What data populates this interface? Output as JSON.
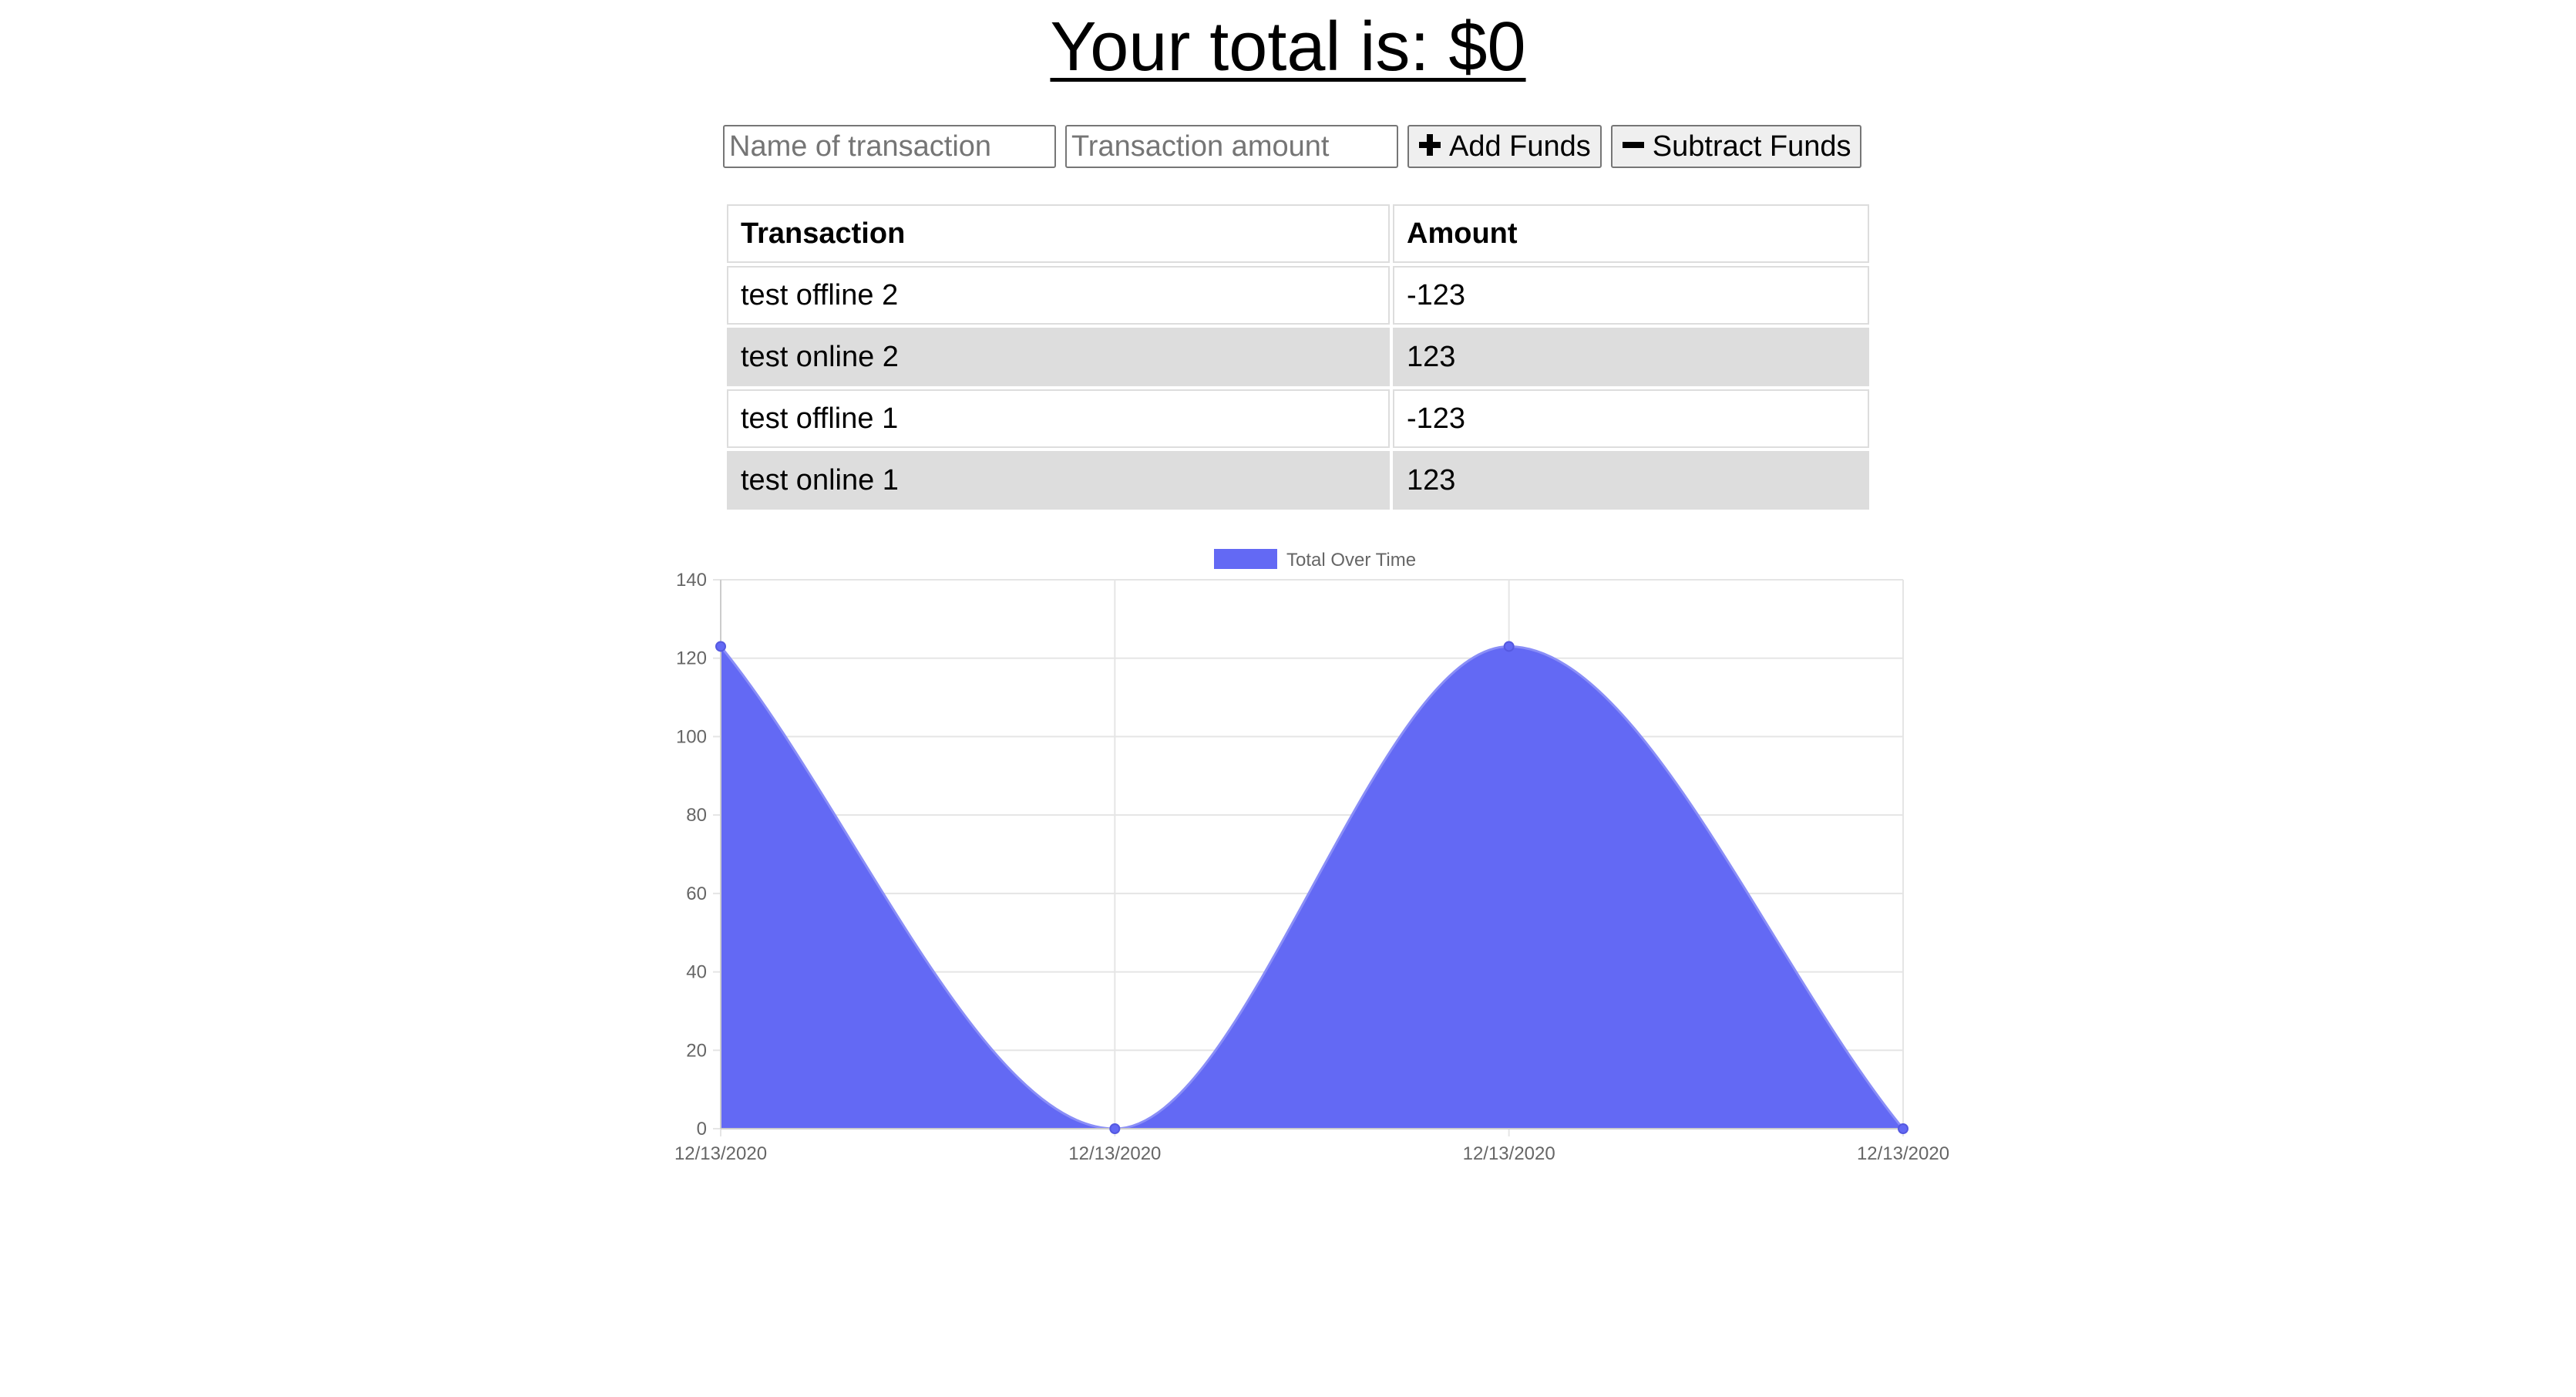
{
  "header": {
    "total_text": "Your total is: $0"
  },
  "form": {
    "name_placeholder": "Name of transaction",
    "amount_placeholder": "Transaction amount",
    "add_label": "Add Funds",
    "subtract_label": "Subtract Funds",
    "add_icon": "plus-icon",
    "subtract_icon": "minus-icon"
  },
  "table": {
    "headers": [
      "Transaction",
      "Amount"
    ],
    "rows": [
      {
        "name": "test offline 2",
        "amount": "-123"
      },
      {
        "name": "test online 2",
        "amount": "123"
      },
      {
        "name": "test offline 1",
        "amount": "-123"
      },
      {
        "name": "test online 1",
        "amount": "123"
      }
    ],
    "alt_row_color": "#dddddd"
  },
  "chart_data": {
    "type": "area",
    "legend": "Total Over Time",
    "legend_position": "top",
    "x": [
      "12/13/2020",
      "12/13/2020",
      "12/13/2020",
      "12/13/2020"
    ],
    "series": [
      {
        "name": "Total Over Time",
        "values": [
          123,
          0,
          123,
          0
        ],
        "color": "#6369f4"
      }
    ],
    "ylim": [
      0,
      140
    ],
    "yticks": [
      0,
      20,
      40,
      60,
      80,
      100,
      120,
      140
    ],
    "grid": true
  }
}
